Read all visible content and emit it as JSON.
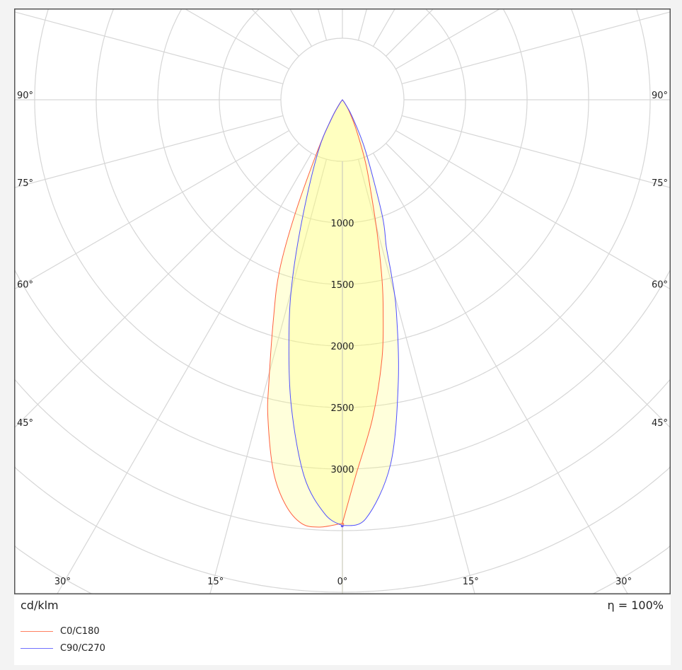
{
  "chart_data": {
    "type": "polar",
    "unit_label": "cd/klm",
    "efficiency_label": "η = 100%",
    "radial_ticks": [
      500,
      1000,
      1500,
      2000,
      2500,
      3000,
      3500,
      4000,
      4500,
      5000
    ],
    "radial_tick_labels": [
      "1000",
      "1500",
      "2000",
      "2500",
      "3000"
    ],
    "angle_labels_left": [
      "90°",
      "75°",
      "60°",
      "45°"
    ],
    "angle_labels_right": [
      "90°",
      "75°",
      "60°",
      "45°"
    ],
    "angle_labels_bottom": [
      "30°",
      "15°",
      "0°",
      "15°",
      "30°"
    ],
    "grid": true,
    "legend_position": "bottom-left",
    "series": [
      {
        "name": "C0/C180",
        "color": "#ff6040",
        "left": [
          [
            0,
            3440
          ],
          [
            3,
            3476
          ],
          [
            5.5,
            3458
          ],
          [
            8,
            3322
          ],
          [
            10.5,
            3073
          ],
          [
            13.2,
            2651
          ],
          [
            14.6,
            2369
          ],
          [
            17.5,
            1862
          ],
          [
            20.2,
            1483
          ],
          [
            22.5,
            1010
          ],
          [
            26.2,
            442
          ],
          [
            30,
            180
          ],
          [
            35,
            50
          ],
          [
            40,
            0
          ]
        ],
        "right": [
          [
            0,
            3440
          ],
          [
            2,
            3060
          ],
          [
            5.4,
            2600
          ],
          [
            8.7,
            2126
          ],
          [
            10.9,
            1750
          ],
          [
            12.4,
            1500
          ],
          [
            14.6,
            1120
          ],
          [
            17,
            800
          ],
          [
            20.2,
            545
          ],
          [
            25,
            260
          ],
          [
            30.6,
            105
          ],
          [
            35,
            30
          ],
          [
            40,
            0
          ]
        ]
      },
      {
        "name": "C90/C270",
        "color": "#5050ff",
        "left": [
          [
            0,
            3460
          ],
          [
            2.4,
            3370
          ],
          [
            5.8,
            3075
          ],
          [
            9.5,
            2519
          ],
          [
            12.8,
            1959
          ],
          [
            15.5,
            1525
          ],
          [
            18.9,
            986
          ],
          [
            25.2,
            459
          ],
          [
            30,
            180
          ],
          [
            35,
            40
          ],
          [
            40,
            0
          ]
        ],
        "right": [
          [
            0,
            3460
          ],
          [
            3.2,
            3408
          ],
          [
            7.5,
            2990
          ],
          [
            11.2,
            2337
          ],
          [
            14.3,
            1773
          ],
          [
            15.6,
            1486
          ],
          [
            16.6,
            1250
          ],
          [
            19,
            994
          ],
          [
            24.3,
            456
          ],
          [
            30,
            160
          ],
          [
            35,
            40
          ],
          [
            40,
            0
          ]
        ]
      }
    ]
  }
}
